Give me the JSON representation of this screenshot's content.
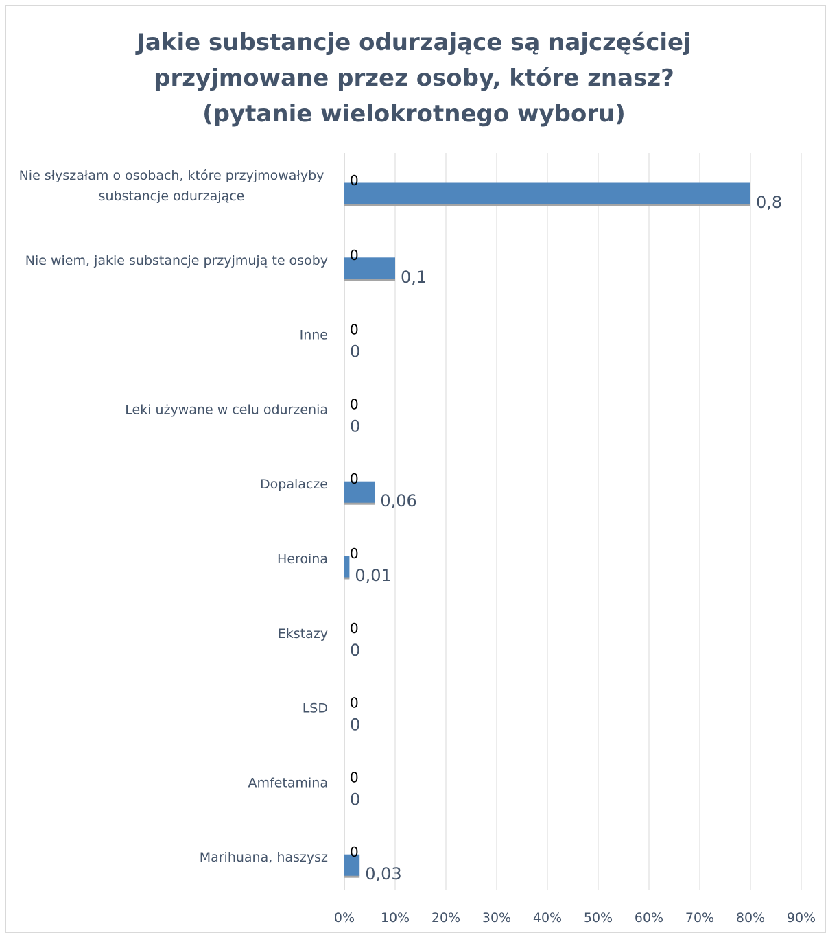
{
  "chart_data": {
    "type": "bar",
    "orientation": "horizontal",
    "title_lines": [
      "Jakie substancje odurzające są najczęściej",
      "przyjmowane przez osoby, które znasz?",
      "(pytanie wielokrotnego wyboru)"
    ],
    "categories": [
      [
        "Nie słyszałam o osobach, które przyjmowałyby",
        "substancje odurzające"
      ],
      [
        "Nie wiem, jakie substancje przyjmują te osoby"
      ],
      [
        "Inne"
      ],
      [
        "Leki używane w celu odurzenia"
      ],
      [
        "Dopalacze"
      ],
      [
        "Heroina"
      ],
      [
        "Ekstazy"
      ],
      [
        "LSD"
      ],
      [
        "Amfetamina"
      ],
      [
        "Marihuana, haszysz"
      ]
    ],
    "series": [
      {
        "values": [
          0,
          0,
          0,
          0,
          0,
          0,
          0,
          0,
          0,
          0
        ],
        "data_labels": [
          "0",
          "0",
          "0",
          "0",
          "0",
          "0",
          "0",
          "0",
          "0",
          "0"
        ],
        "color": "#a5a5a5"
      },
      {
        "values": [
          0.8,
          0.1,
          0,
          0,
          0.06,
          0.01,
          0,
          0,
          0,
          0.03
        ],
        "data_labels": [
          "0,8",
          "0,1",
          "0",
          "0",
          "0,06",
          "0,01",
          "0",
          "0",
          "0",
          "0,03"
        ],
        "color": "#4f86bd"
      }
    ],
    "xlim": [
      0,
      0.9
    ],
    "xticks": [
      0,
      0.1,
      0.2,
      0.3,
      0.4,
      0.5,
      0.6,
      0.7,
      0.8,
      0.9
    ],
    "xtick_labels": [
      "0%",
      "10%",
      "20%",
      "30%",
      "40%",
      "50%",
      "60%",
      "70%",
      "80%",
      "90%"
    ],
    "grid": true,
    "legend": "none"
  }
}
